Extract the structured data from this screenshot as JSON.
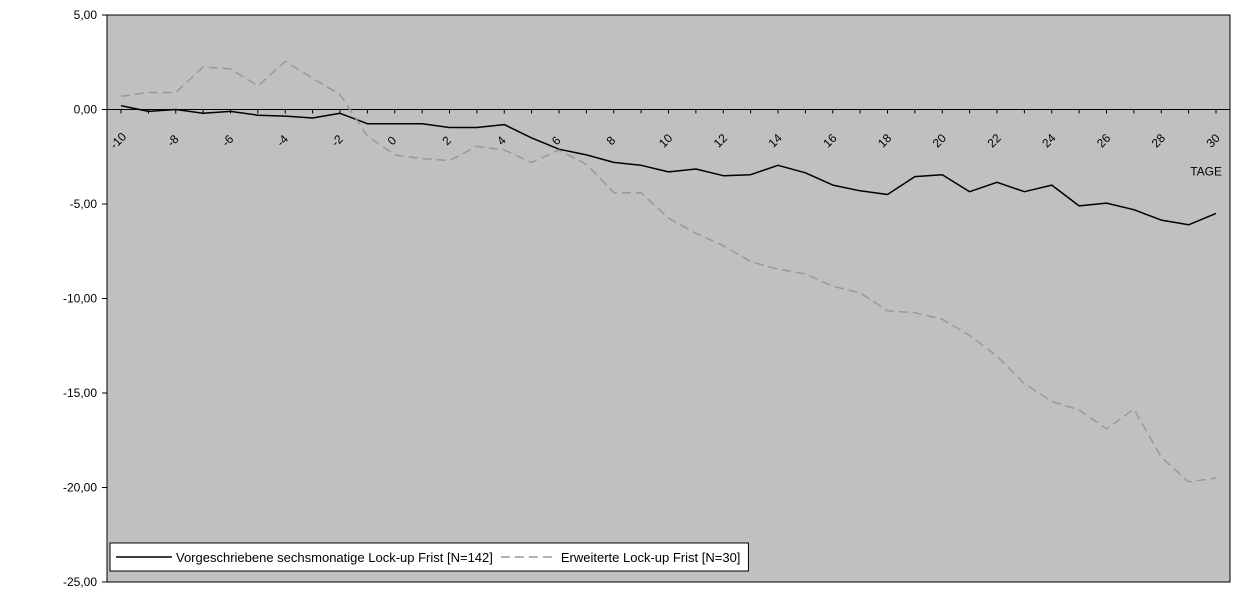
{
  "chart_data": {
    "type": "line",
    "title": "",
    "xlabel": "TAGE",
    "ylabel": "",
    "xlim": [
      -10,
      30
    ],
    "ylim": [
      -25,
      5
    ],
    "grid": false,
    "legend_position": "bottom-left",
    "x_ticks": [
      -10,
      -8,
      -6,
      -4,
      -2,
      0,
      2,
      4,
      6,
      8,
      10,
      12,
      14,
      16,
      18,
      20,
      22,
      24,
      26,
      28,
      30
    ],
    "x_tick_labels": [
      "-10",
      "-8",
      "-6",
      "-4",
      "-2",
      "0",
      "2",
      "4",
      "6",
      "8",
      "10",
      "12",
      "14",
      "16",
      "18",
      "20",
      "22",
      "24",
      "26",
      "28",
      "30"
    ],
    "y_ticks": [
      5,
      0,
      -5,
      -10,
      -15,
      -20,
      -25
    ],
    "y_tick_labels": [
      "5,00",
      "0,00",
      "-5,00",
      "-10,00",
      "-15,00",
      "-20,00",
      "-25,00"
    ],
    "x": [
      -10,
      -9,
      -8,
      -7,
      -6,
      -5,
      -4,
      -3,
      -2,
      -1,
      0,
      1,
      2,
      3,
      4,
      5,
      6,
      7,
      8,
      9,
      10,
      11,
      12,
      13,
      14,
      15,
      16,
      17,
      18,
      19,
      20,
      21,
      22,
      23,
      24,
      25,
      26,
      27,
      28,
      29,
      30
    ],
    "series": [
      {
        "name": "Vorgeschriebene sechsmonatige Lock-up Frist [N=142]",
        "color": "#000000",
        "dash": "solid",
        "values": [
          0.2,
          -0.1,
          0.0,
          -0.2,
          -0.1,
          -0.3,
          -0.35,
          -0.45,
          -0.2,
          -0.75,
          -0.75,
          -0.75,
          -0.95,
          -0.95,
          -0.8,
          -1.5,
          -2.1,
          -2.4,
          -2.8,
          -2.95,
          -3.3,
          -3.15,
          -3.5,
          -3.45,
          -2.95,
          -3.35,
          -4.0,
          -4.3,
          -4.5,
          -3.55,
          -3.45,
          -4.35,
          -3.85,
          -4.35,
          -4.0,
          -5.1,
          -4.95,
          -5.3,
          -5.85,
          -6.1,
          -5.5
        ]
      },
      {
        "name": "Erweiterte Lock-up Frist [N=30]",
        "color": "#999999",
        "dash": "dashed",
        "values": [
          0.7,
          0.9,
          0.9,
          2.25,
          2.15,
          1.25,
          2.55,
          1.65,
          0.8,
          -1.4,
          -2.4,
          -2.6,
          -2.7,
          -1.95,
          -2.15,
          -2.8,
          -2.15,
          -2.9,
          -4.4,
          -4.4,
          -5.75,
          -6.55,
          -7.2,
          -8.05,
          -8.45,
          -8.7,
          -9.35,
          -9.7,
          -10.65,
          -10.75,
          -11.1,
          -11.95,
          -13.05,
          -14.5,
          -15.45,
          -15.9,
          -16.9,
          -15.85,
          -18.4,
          -19.7,
          -19.5
        ]
      }
    ]
  }
}
